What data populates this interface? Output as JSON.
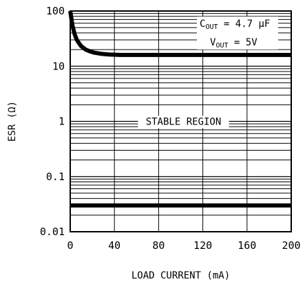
{
  "chart_data": {
    "type": "line",
    "xlabel": "LOAD CURRENT (mA)",
    "ylabel": "ESR (Ω)",
    "x_scale": "linear",
    "y_scale": "log",
    "xlim": [
      0,
      200
    ],
    "ylim": [
      0.01,
      100
    ],
    "x_ticks": [
      0,
      40,
      80,
      120,
      160,
      200
    ],
    "x_tick_labels": [
      "0",
      "40",
      "80",
      "120",
      "160",
      "200"
    ],
    "y_ticks": [
      0.01,
      0.1,
      1,
      10,
      100
    ],
    "y_tick_labels": [
      "0.01",
      "0.1",
      "1",
      "10",
      "100"
    ],
    "grid": true,
    "series": [
      {
        "role": "upper-boundary",
        "x": [
          0,
          2,
          4,
          6,
          8,
          10,
          14,
          18,
          22,
          28,
          35,
          45,
          60,
          100,
          150,
          200
        ],
        "y": [
          100,
          55,
          38,
          30,
          26,
          23,
          20,
          18.5,
          17.5,
          16.8,
          16.3,
          16,
          16,
          16,
          16,
          16
        ]
      },
      {
        "role": "lower-boundary",
        "x": [
          0,
          200
        ],
        "y": [
          0.03,
          0.03
        ]
      }
    ],
    "annotations": {
      "region_label": "STABLE REGION",
      "cout_label": "C",
      "cout_sub": "OUT",
      "cout_value": " = 4.7 μF",
      "vout_label": "V",
      "vout_sub": "OUT",
      "vout_value": " = 5V"
    }
  }
}
